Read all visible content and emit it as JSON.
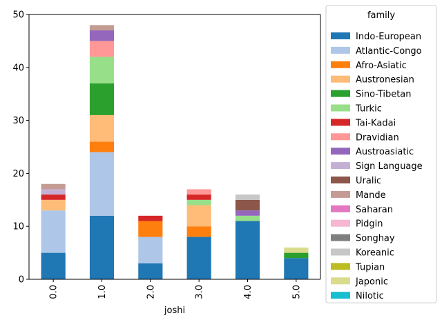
{
  "chart_data": {
    "type": "bar",
    "stacked": true,
    "xlabel": "joshi",
    "ylabel": "",
    "ylim": [
      0,
      50
    ],
    "yticks": [
      0,
      10,
      20,
      30,
      40,
      50
    ],
    "categories": [
      "0.0",
      "1.0",
      "2.0",
      "3.0",
      "4.0",
      "5.0"
    ],
    "legend": {
      "title": "family",
      "placement": "outside-right"
    },
    "grid": false,
    "series": [
      {
        "name": "Indo-European",
        "color": "#1f77b4",
        "values": [
          5,
          12,
          3,
          8,
          11,
          4
        ]
      },
      {
        "name": "Atlantic-Congo",
        "color": "#aec7e8",
        "values": [
          8,
          12,
          5,
          0,
          0,
          0
        ]
      },
      {
        "name": "Afro-Asiatic",
        "color": "#ff7f0e",
        "values": [
          0,
          2,
          3,
          2,
          0,
          0
        ]
      },
      {
        "name": "Austronesian",
        "color": "#ffbb78",
        "values": [
          2,
          5,
          0,
          4,
          0,
          0
        ]
      },
      {
        "name": "Sino-Tibetan",
        "color": "#2ca02c",
        "values": [
          0,
          6,
          0,
          0,
          0,
          1
        ]
      },
      {
        "name": "Turkic",
        "color": "#98df8a",
        "values": [
          0,
          5,
          0,
          1,
          1,
          0
        ]
      },
      {
        "name": "Tai-Kadai",
        "color": "#d62728",
        "values": [
          1,
          0,
          1,
          1,
          0,
          0
        ]
      },
      {
        "name": "Dravidian",
        "color": "#ff9896",
        "values": [
          0,
          3,
          0,
          1,
          0,
          0
        ]
      },
      {
        "name": "Austroasiatic",
        "color": "#9467bd",
        "values": [
          0,
          2,
          0,
          0,
          1,
          0
        ]
      },
      {
        "name": "Sign Language",
        "color": "#c5b0d5",
        "values": [
          1,
          0,
          0,
          0,
          0,
          0
        ]
      },
      {
        "name": "Uralic",
        "color": "#8c564b",
        "values": [
          0,
          0,
          0,
          0,
          2,
          0
        ]
      },
      {
        "name": "Mande",
        "color": "#c49c94",
        "values": [
          1,
          1,
          0,
          0,
          0,
          0
        ]
      },
      {
        "name": "Saharan",
        "color": "#e377c2",
        "values": [
          0,
          0,
          0,
          0,
          0,
          0
        ]
      },
      {
        "name": "Pidgin",
        "color": "#f7b6d2",
        "values": [
          0,
          0,
          0,
          0,
          0,
          0
        ]
      },
      {
        "name": "Songhay",
        "color": "#7f7f7f",
        "values": [
          0,
          0,
          0,
          0,
          0,
          0
        ]
      },
      {
        "name": "Koreanic",
        "color": "#c7c7c7",
        "values": [
          0,
          0,
          0,
          0,
          1,
          0
        ]
      },
      {
        "name": "Tupian",
        "color": "#bcbd22",
        "values": [
          0,
          0,
          0,
          0,
          0,
          0
        ]
      },
      {
        "name": "Japonic",
        "color": "#dbdb8d",
        "values": [
          0,
          0,
          0,
          0,
          0,
          1
        ]
      },
      {
        "name": "Nilotic",
        "color": "#17becf",
        "values": [
          0,
          0,
          0,
          0,
          0,
          0
        ]
      }
    ]
  }
}
